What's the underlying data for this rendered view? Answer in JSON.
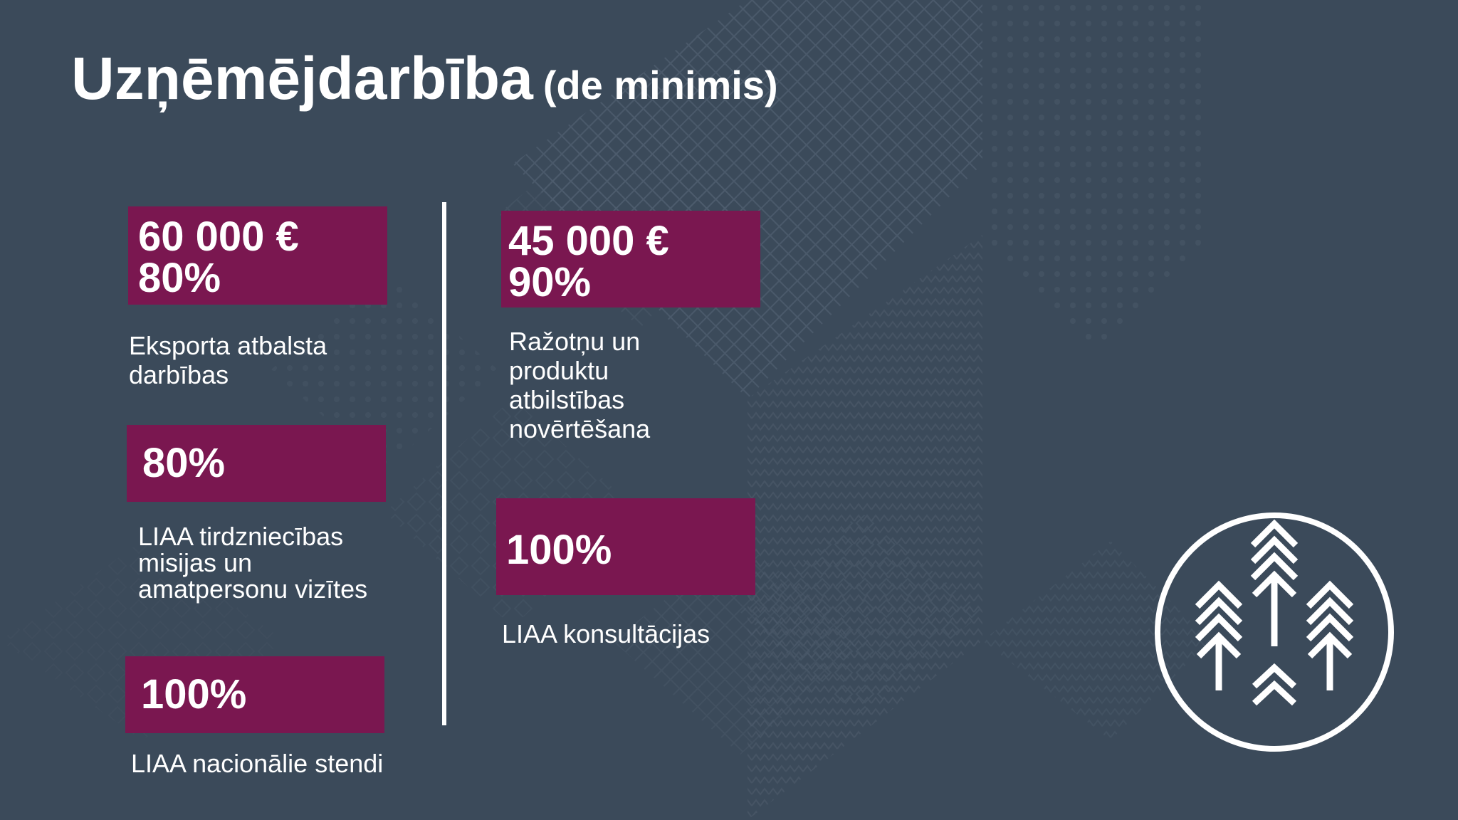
{
  "title": {
    "main": "Uzņēmējdarbība",
    "sub": "(de minimis)"
  },
  "left_column": [
    {
      "lines": [
        "60 000 €",
        "80%"
      ],
      "description": [
        "Eksporta atbalsta",
        "darbības"
      ]
    },
    {
      "lines": [
        "80%"
      ],
      "description": [
        "LIAA tirdzniecības",
        "misijas un",
        "amatpersonu vizītes"
      ]
    },
    {
      "lines": [
        "100%"
      ],
      "description": [
        "LIAA nacionālie stendi"
      ]
    }
  ],
  "right_column": [
    {
      "lines": [
        "45 000 €",
        "90%"
      ],
      "description": [
        "Ražotņu un",
        "produktu",
        "atbilstības",
        "novērtēšana"
      ]
    },
    {
      "lines": [
        "100%"
      ],
      "description": [
        "LIAA konsultācijas"
      ]
    }
  ],
  "colors": {
    "background": "#3b4a5a",
    "accent": "#7a1750",
    "text": "#ffffff"
  },
  "icons": {
    "logo": "forest-trees-logo-icon"
  }
}
